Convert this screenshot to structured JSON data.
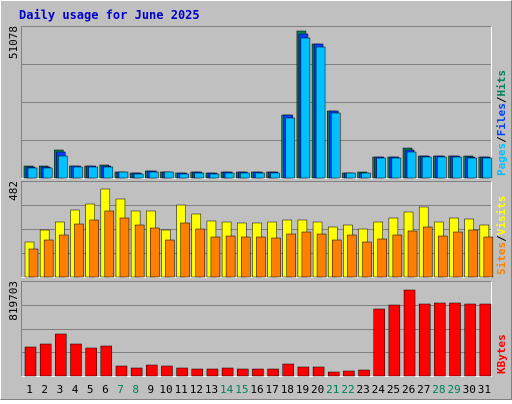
{
  "colors": {
    "background": "#C0C0C0",
    "border_light": "#FFFFFF",
    "border_dark": "#808080",
    "title": "#0000CC",
    "axis_text": "#000000",
    "gridline": "#808080",
    "hits": "#00805C",
    "files": "#0040FF",
    "pages": "#00C0FF",
    "visits": "#FFFF00",
    "sites": "#FF8000",
    "kbytes": "#FF0000",
    "weekend_day": "#00805C",
    "weekday_day": "#000000"
  },
  "chart_data": {
    "type": "bar",
    "title": "Daily usage for June 2025",
    "categories": [
      "1",
      "2",
      "3",
      "4",
      "5",
      "6",
      "7",
      "8",
      "9",
      "10",
      "11",
      "12",
      "13",
      "14",
      "15",
      "16",
      "17",
      "18",
      "19",
      "20",
      "21",
      "22",
      "23",
      "24",
      "25",
      "26",
      "27",
      "28",
      "29",
      "30",
      "31"
    ],
    "weekend_days": [
      "7",
      "8",
      "14",
      "15",
      "21",
      "22",
      "28",
      "29"
    ],
    "panels": [
      {
        "y_max_label": "51078",
        "ylim": [
          0,
          51078
        ],
        "legend": [
          "Pages",
          "Files",
          "Hits"
        ],
        "legend_colors": [
          "#00C0FF",
          "#0040FF",
          "#00805C"
        ],
        "series": [
          {
            "name": "Hits",
            "values": [
              4100,
              4100,
              9500,
              4200,
              4200,
              4400,
              2100,
              1700,
              2400,
              2200,
              1700,
              1900,
              1700,
              2000,
              2000,
              2000,
              2000,
              21600,
              50600,
              46400,
              23200,
              1800,
              1900,
              7400,
              7400,
              10300,
              7700,
              7700,
              7700,
              7700,
              7300
            ]
          },
          {
            "name": "Files",
            "values": [
              3900,
              3900,
              8900,
              4100,
              4100,
              4100,
              2100,
              1700,
              2300,
              2200,
              1700,
              1900,
              1700,
              1900,
              1900,
              1900,
              1900,
              21600,
              49800,
              46400,
              23200,
              1800,
              1800,
              7300,
              7300,
              9600,
              7600,
              7600,
              7600,
              7400,
              7200
            ]
          },
          {
            "name": "Pages",
            "values": [
              3600,
              3600,
              7700,
              3800,
              3800,
              3800,
              1900,
              1500,
              2100,
              2000,
              1500,
              1700,
              1500,
              1700,
              1700,
              1700,
              1700,
              20700,
              48300,
              45100,
              22500,
              1600,
              1600,
              7000,
              7000,
              9100,
              7300,
              7300,
              7300,
              7000,
              6800
            ]
          }
        ]
      },
      {
        "y_max_label": "482",
        "ylim": [
          0,
          482
        ],
        "legend": [
          "Sites",
          "Visits"
        ],
        "legend_colors": [
          "#FF8000",
          "#FFFF00"
        ],
        "series": [
          {
            "name": "Visits",
            "values": [
              185,
              245,
              290,
              350,
              385,
              460,
              410,
              345,
              345,
              245,
              375,
              330,
              295,
              290,
              285,
              285,
              290,
              300,
              300,
              290,
              260,
              275,
              250,
              290,
              310,
              340,
              365,
              290,
              310,
              305,
              270
            ]
          },
          {
            "name": "Sites",
            "values": [
              145,
              195,
              220,
              280,
              300,
              345,
              310,
              270,
              255,
              195,
              285,
              250,
              210,
              215,
              210,
              210,
              205,
              225,
              235,
              225,
              195,
              220,
              185,
              200,
              220,
              240,
              260,
              215,
              235,
              245,
              210
            ]
          }
        ]
      },
      {
        "y_max_label": "819703",
        "ylim": [
          0,
          819703
        ],
        "legend": [
          "KBytes"
        ],
        "legend_colors": [
          "#FF0000"
        ],
        "series": [
          {
            "name": "KBytes",
            "values": [
              260000,
              290000,
              380000,
              290000,
              250000,
              270000,
              90000,
              75000,
              100000,
              90000,
              70000,
              60000,
              60000,
              70000,
              60000,
              65000,
              60000,
              110000,
              80000,
              85000,
              40000,
              45000,
              50000,
              600000,
              640000,
              778000,
              650000,
              660000,
              655000,
              645000,
              645000
            ]
          }
        ]
      }
    ]
  }
}
